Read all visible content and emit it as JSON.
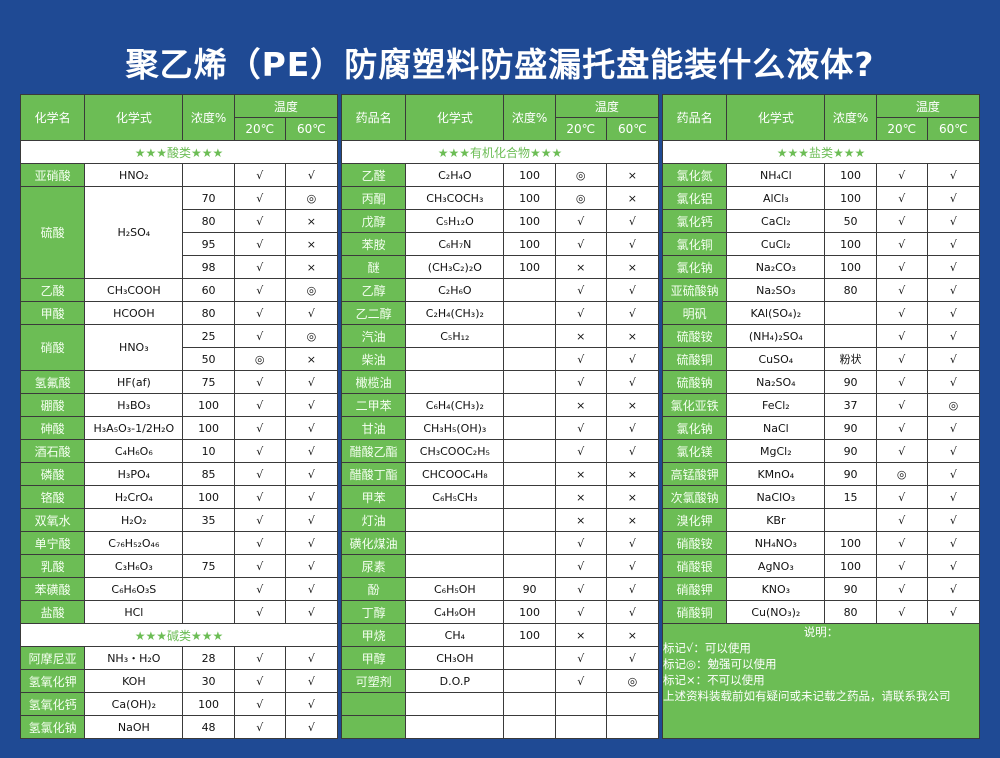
{
  "title": "聚乙烯（PE）防腐塑料防盛漏托盘能装什么液体?",
  "headers": {
    "acid_name": "化学名",
    "drug_name": "药品名",
    "formula": "化学式",
    "conc": "浓度%",
    "temp": "温度",
    "t20": "20℃",
    "t60": "60℃"
  },
  "marks": {
    "ok": "√",
    "limited": "◎",
    "no": "×"
  },
  "colors": {
    "background": "#1f4a94",
    "green": "#6cbd55",
    "check": "#111111",
    "circle": "#3b6fc6",
    "cross": "#e0413a"
  },
  "left": {
    "sections": [
      {
        "title": "★★★酸类★★★",
        "items": [
          {
            "name": "亚硝酸",
            "formula": "HNO₂",
            "rows": [
              [
                "",
                "√",
                "√"
              ]
            ]
          },
          {
            "name": "硫酸",
            "formula": "H₂SO₄",
            "rows": [
              [
                "70",
                "√",
                "◎"
              ],
              [
                "80",
                "√",
                "×"
              ],
              [
                "95",
                "√",
                "×"
              ],
              [
                "98",
                "√",
                "×"
              ]
            ]
          },
          {
            "name": "乙酸",
            "formula": "CH₃COOH",
            "rows": [
              [
                "60",
                "√",
                "◎"
              ]
            ]
          },
          {
            "name": "甲酸",
            "formula": "HCOOH",
            "rows": [
              [
                "80",
                "√",
                "√"
              ]
            ]
          },
          {
            "name": "硝酸",
            "formula": "HNO₃",
            "rows": [
              [
                "25",
                "√",
                "◎"
              ],
              [
                "50",
                "◎",
                "×"
              ]
            ]
          },
          {
            "name": "氢氟酸",
            "formula": "HF(af)",
            "rows": [
              [
                "75",
                "√",
                "√"
              ]
            ]
          },
          {
            "name": "硼酸",
            "formula": "H₃BO₃",
            "rows": [
              [
                "100",
                "√",
                "√"
              ]
            ]
          },
          {
            "name": "砷酸",
            "formula": "H₃A₅O₃-1/2H₂O",
            "rows": [
              [
                "100",
                "√",
                "√"
              ]
            ]
          },
          {
            "name": "酒石酸",
            "formula": "C₄H₆O₆",
            "rows": [
              [
                "10",
                "√",
                "√"
              ]
            ]
          },
          {
            "name": "磷酸",
            "formula": "H₃PO₄",
            "rows": [
              [
                "85",
                "√",
                "√"
              ]
            ]
          },
          {
            "name": "铬酸",
            "formula": "H₂CrO₄",
            "rows": [
              [
                "100",
                "√",
                "√"
              ]
            ]
          },
          {
            "name": "双氧水",
            "formula": "H₂O₂",
            "rows": [
              [
                "35",
                "√",
                "√"
              ]
            ]
          },
          {
            "name": "单宁酸",
            "formula": "C₇₆H₅₂O₄₆",
            "rows": [
              [
                "",
                "√",
                "√"
              ]
            ]
          },
          {
            "name": "乳酸",
            "formula": "C₃H₆O₃",
            "rows": [
              [
                "75",
                "√",
                "√"
              ]
            ]
          },
          {
            "name": "苯磺酸",
            "formula": "C₆H₆O₃S",
            "rows": [
              [
                "",
                "√",
                "√"
              ]
            ]
          },
          {
            "name": "盐酸",
            "formula": "HCl",
            "rows": [
              [
                "",
                "√",
                "√"
              ]
            ]
          }
        ]
      },
      {
        "title": "★★★碱类★★★",
        "items": [
          {
            "name": "阿摩尼亚",
            "formula": "NH₃・H₂O",
            "rows": [
              [
                "28",
                "√",
                "√"
              ]
            ]
          },
          {
            "name": "氢氧化钾",
            "formula": "KOH",
            "rows": [
              [
                "30",
                "√",
                "√"
              ]
            ]
          },
          {
            "name": "氢氧化钙",
            "formula": "Ca(OH)₂",
            "rows": [
              [
                "100",
                "√",
                "√"
              ]
            ]
          },
          {
            "name": "氢氯化钠",
            "formula": "NaOH",
            "rows": [
              [
                "48",
                "√",
                "√"
              ]
            ]
          }
        ]
      }
    ]
  },
  "middle": {
    "sections": [
      {
        "title": "★★★有机化合物★★★",
        "items": [
          {
            "name": "乙醛",
            "formula": "C₂H₄O",
            "rows": [
              [
                "100",
                "◎",
                "×"
              ]
            ]
          },
          {
            "name": "丙酮",
            "formula": "CH₃COCH₃",
            "rows": [
              [
                "100",
                "◎",
                "×"
              ]
            ]
          },
          {
            "name": "戊醇",
            "formula": "C₅H₁₂O",
            "rows": [
              [
                "100",
                "√",
                "√"
              ]
            ]
          },
          {
            "name": "苯胺",
            "formula": "C₆H₇N",
            "rows": [
              [
                "100",
                "√",
                "√"
              ]
            ]
          },
          {
            "name": "醚",
            "formula": "(CH₃C₂)₂O",
            "rows": [
              [
                "100",
                "×",
                "×"
              ]
            ]
          },
          {
            "name": "乙醇",
            "formula": "C₂H₆O",
            "rows": [
              [
                "",
                "√",
                "√"
              ]
            ]
          },
          {
            "name": "乙二醇",
            "formula": "C₂H₄(CH₃)₂",
            "rows": [
              [
                "",
                "√",
                "√"
              ]
            ]
          },
          {
            "name": "汽油",
            "formula": "C₅H₁₂",
            "rows": [
              [
                "",
                "×",
                "×"
              ]
            ]
          },
          {
            "name": "柴油",
            "formula": "",
            "rows": [
              [
                "",
                "√",
                "√"
              ]
            ]
          },
          {
            "name": "橄榄油",
            "formula": "",
            "rows": [
              [
                "",
                "√",
                "√"
              ]
            ]
          },
          {
            "name": "二甲苯",
            "formula": "C₆H₄(CH₃)₂",
            "rows": [
              [
                "",
                "×",
                "×"
              ]
            ]
          },
          {
            "name": "甘油",
            "formula": "CH₃H₅(OH)₃",
            "rows": [
              [
                "",
                "√",
                "√"
              ]
            ]
          },
          {
            "name": "醋酸乙酯",
            "formula": "CH₃COOC₂H₅",
            "rows": [
              [
                "",
                "√",
                "√"
              ]
            ]
          },
          {
            "name": "醋酸丁酯",
            "formula": "CHCOOC₄H₈",
            "rows": [
              [
                "",
                "×",
                "×"
              ]
            ]
          },
          {
            "name": "甲苯",
            "formula": "C₆H₅CH₃",
            "rows": [
              [
                "",
                "×",
                "×"
              ]
            ]
          },
          {
            "name": "灯油",
            "formula": "",
            "rows": [
              [
                "",
                "×",
                "×"
              ]
            ]
          },
          {
            "name": "磺化煤油",
            "formula": "",
            "rows": [
              [
                "",
                "√",
                "√"
              ]
            ]
          },
          {
            "name": "尿素",
            "formula": "",
            "rows": [
              [
                "",
                "√",
                "√"
              ]
            ]
          },
          {
            "name": "酚",
            "formula": "C₆H₅OH",
            "rows": [
              [
                "90",
                "√",
                "√"
              ]
            ]
          },
          {
            "name": "丁醇",
            "formula": "C₄H₉OH",
            "rows": [
              [
                "100",
                "√",
                "√"
              ]
            ]
          },
          {
            "name": "甲烧",
            "formula": "CH₄",
            "rows": [
              [
                "100",
                "×",
                "×"
              ]
            ]
          },
          {
            "name": "甲醇",
            "formula": "CH₃OH",
            "rows": [
              [
                "",
                "√",
                "√"
              ]
            ]
          },
          {
            "name": "可塑剂",
            "formula": "D.O.P",
            "rows": [
              [
                "",
                "√",
                "◎"
              ]
            ]
          },
          {
            "name": "",
            "formula": "",
            "rows": [
              [
                "",
                "",
                ""
              ]
            ]
          },
          {
            "name": "",
            "formula": "",
            "rows": [
              [
                "",
                "",
                ""
              ]
            ]
          }
        ]
      }
    ]
  },
  "right": {
    "sections": [
      {
        "title": "★★★盐类★★★",
        "items": [
          {
            "name": "氯化氮",
            "formula": "NH₄Cl",
            "rows": [
              [
                "100",
                "√",
                "√"
              ]
            ]
          },
          {
            "name": "氯化铝",
            "formula": "AlCl₃",
            "rows": [
              [
                "100",
                "√",
                "√"
              ]
            ]
          },
          {
            "name": "氯化钙",
            "formula": "CaCl₂",
            "rows": [
              [
                "50",
                "√",
                "√"
              ]
            ]
          },
          {
            "name": "氯化铜",
            "formula": "CuCl₂",
            "rows": [
              [
                "100",
                "√",
                "√"
              ]
            ]
          },
          {
            "name": "氯化钠",
            "formula": "Na₂CO₃",
            "rows": [
              [
                "100",
                "√",
                "√"
              ]
            ]
          },
          {
            "name": "亚硫酸钠",
            "formula": "Na₂SO₃",
            "rows": [
              [
                "80",
                "√",
                "√"
              ]
            ]
          },
          {
            "name": "明矾",
            "formula": "KAl(SO₄)₂",
            "rows": [
              [
                "",
                "√",
                "√"
              ]
            ]
          },
          {
            "name": "硫酸铵",
            "formula": "(NH₄)₂SO₄",
            "rows": [
              [
                "",
                "√",
                "√"
              ]
            ]
          },
          {
            "name": "硫酸铜",
            "formula": "CuSO₄",
            "rows": [
              [
                "粉状",
                "√",
                "√"
              ]
            ]
          },
          {
            "name": "硫酸钠",
            "formula": "Na₂SO₄",
            "rows": [
              [
                "90",
                "√",
                "√"
              ]
            ]
          },
          {
            "name": "氯化亚铁",
            "formula": "FeCl₂",
            "rows": [
              [
                "37",
                "√",
                "◎"
              ]
            ]
          },
          {
            "name": "氯化钠",
            "formula": "NaCl",
            "rows": [
              [
                "90",
                "√",
                "√"
              ]
            ]
          },
          {
            "name": "氯化镁",
            "formula": "MgCl₂",
            "rows": [
              [
                "90",
                "√",
                "√"
              ]
            ]
          },
          {
            "name": "高锰酸钾",
            "formula": "KMnO₄",
            "rows": [
              [
                "90",
                "◎",
                "√"
              ]
            ]
          },
          {
            "name": "次氯酸钠",
            "formula": "NaClO₃",
            "rows": [
              [
                "15",
                "√",
                "√"
              ]
            ]
          },
          {
            "name": "溴化钾",
            "formula": "KBr",
            "rows": [
              [
                "",
                "√",
                "√"
              ]
            ]
          },
          {
            "name": "硝酸铵",
            "formula": "NH₄NO₃",
            "rows": [
              [
                "100",
                "√",
                "√"
              ]
            ]
          },
          {
            "name": "硝酸银",
            "formula": "AgNO₃",
            "rows": [
              [
                "100",
                "√",
                "√"
              ]
            ]
          },
          {
            "name": "硝酸钾",
            "formula": "KNO₃",
            "rows": [
              [
                "90",
                "√",
                "√"
              ]
            ]
          },
          {
            "name": "硝酸铜",
            "formula": "Cu(NO₃)₂",
            "rows": [
              [
                "80",
                "√",
                "√"
              ]
            ]
          }
        ]
      }
    ],
    "legend": {
      "title": "说明：",
      "lines": [
        "标记√：可以使用",
        "标记◎：勉强可以使用",
        "标记×：不可以使用",
        "上述资料装载前如有疑问或未记载之药品，请联系我公司"
      ]
    }
  }
}
